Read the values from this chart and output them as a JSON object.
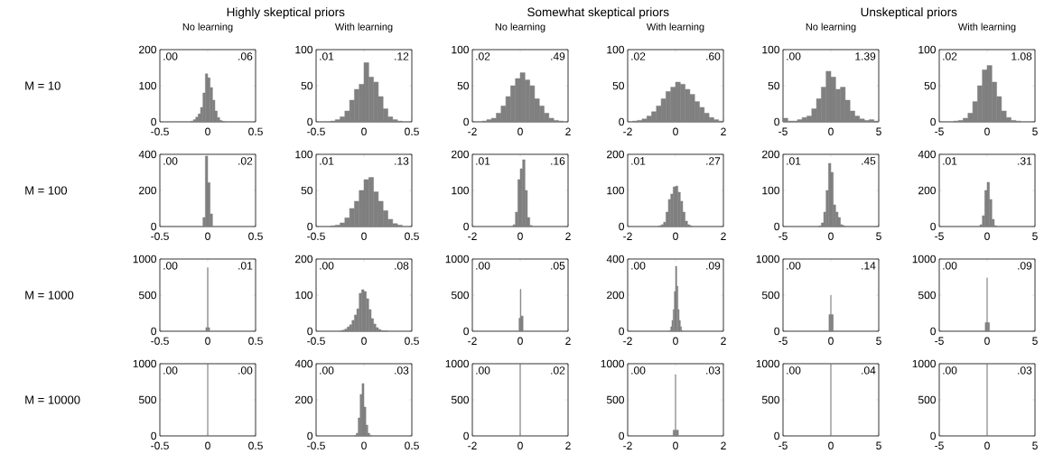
{
  "chart_data": [
    {
      "type": "histogram",
      "title": "Highly skeptical priors",
      "subtitle": "No learning",
      "ylabel": "M = 10",
      "color": "#808080",
      "xlim": [
        -0.5,
        0.5
      ],
      "ylim": [
        0,
        200
      ],
      "xticks": [
        -0.5,
        0,
        0.5
      ],
      "yticks": [
        0,
        100,
        200
      ],
      "annotations": [
        ".00",
        ".06"
      ],
      "bins": [
        -0.175,
        -0.15,
        -0.125,
        -0.1,
        -0.075,
        -0.05,
        -0.025,
        0,
        0.025,
        0.05,
        0.075,
        0.1,
        0.125,
        0.15,
        0.175
      ],
      "values": [
        2,
        6,
        13,
        22,
        40,
        80,
        133,
        122,
        95,
        60,
        30,
        12,
        4,
        1
      ]
    },
    {
      "type": "histogram",
      "subtitle": "With learning",
      "color": "#808080",
      "xlim": [
        -0.5,
        0.5
      ],
      "ylim": [
        0,
        100
      ],
      "xticks": [
        -0.5,
        0,
        0.5
      ],
      "yticks": [
        0,
        50,
        100
      ],
      "annotations": [
        ".01",
        ".12"
      ],
      "bins": [
        -0.35,
        -0.3,
        -0.25,
        -0.2,
        -0.15,
        -0.1,
        -0.05,
        0,
        0.05,
        0.1,
        0.15,
        0.2,
        0.25,
        0.3,
        0.35,
        0.4
      ],
      "values": [
        1,
        3,
        7,
        15,
        30,
        45,
        52,
        82,
        62,
        55,
        35,
        18,
        7,
        3,
        1
      ]
    },
    {
      "type": "histogram",
      "title": "Somewhat skeptical priors",
      "subtitle": "No learning",
      "color": "#808080",
      "xlim": [
        -2,
        2
      ],
      "ylim": [
        0,
        100
      ],
      "xticks": [
        -2,
        0,
        2
      ],
      "yticks": [
        0,
        50,
        100
      ],
      "annotations": [
        ".02",
        ".49"
      ],
      "bins": [
        -1.6,
        -1.4,
        -1.2,
        -1.0,
        -0.8,
        -0.6,
        -0.4,
        -0.2,
        0,
        0.2,
        0.4,
        0.6,
        0.8,
        1.0,
        1.2,
        1.4,
        1.6,
        1.8
      ],
      "values": [
        1,
        3,
        5,
        12,
        22,
        35,
        50,
        60,
        68,
        58,
        50,
        32,
        22,
        12,
        5,
        2,
        1
      ]
    },
    {
      "type": "histogram",
      "subtitle": "With learning",
      "color": "#808080",
      "xlim": [
        -2,
        2
      ],
      "ylim": [
        0,
        100
      ],
      "xticks": [
        -2,
        0,
        2
      ],
      "yticks": [
        0,
        50,
        100
      ],
      "annotations": [
        ".02",
        ".60"
      ],
      "bins": [
        -1.8,
        -1.6,
        -1.4,
        -1.2,
        -1.0,
        -0.8,
        -0.6,
        -0.4,
        -0.2,
        0,
        0.2,
        0.4,
        0.6,
        0.8,
        1.0,
        1.2,
        1.4,
        1.6,
        1.8,
        2.0
      ],
      "values": [
        1,
        2,
        4,
        8,
        14,
        22,
        32,
        42,
        48,
        55,
        52,
        45,
        38,
        28,
        20,
        12,
        6,
        3,
        1
      ]
    },
    {
      "type": "histogram",
      "title": "Unskeptical priors",
      "subtitle": "No learning",
      "color": "#808080",
      "xlim": [
        -5,
        5
      ],
      "ylim": [
        0,
        100
      ],
      "xticks": [
        -5,
        0,
        5
      ],
      "yticks": [
        0,
        50,
        100
      ],
      "annotations": [
        ".00",
        "1.39"
      ],
      "bins": [
        -5,
        -4.5,
        -4,
        -3.5,
        -3,
        -2.5,
        -2,
        -1.5,
        -1,
        -0.5,
        0,
        0.5,
        1,
        1.5,
        2,
        2.5,
        3,
        3.5,
        4,
        4.5,
        5
      ],
      "values": [
        5,
        1,
        1,
        3,
        6,
        8,
        18,
        32,
        48,
        70,
        62,
        45,
        48,
        30,
        15,
        8,
        4,
        2,
        3,
        1
      ]
    },
    {
      "type": "histogram",
      "subtitle": "With learning",
      "color": "#808080",
      "xlim": [
        -5,
        5
      ],
      "ylim": [
        0,
        100
      ],
      "xticks": [
        -5,
        0,
        5
      ],
      "yticks": [
        0,
        50,
        100
      ],
      "annotations": [
        ".02",
        "1.08"
      ],
      "bins": [
        -3.5,
        -3,
        -2.5,
        -2,
        -1.5,
        -1,
        -0.5,
        0,
        0.5,
        1,
        1.5,
        2,
        2.5,
        3,
        3.5
      ],
      "values": [
        1,
        2,
        5,
        12,
        28,
        50,
        72,
        78,
        55,
        35,
        15,
        6,
        2,
        1
      ]
    },
    {
      "type": "histogram",
      "ylabel": "M = 100",
      "color": "#808080",
      "xlim": [
        -0.5,
        0.5
      ],
      "ylim": [
        0,
        400
      ],
      "xticks": [
        -0.5,
        0,
        0.5
      ],
      "yticks": [
        0,
        200,
        400
      ],
      "annotations": [
        ".00",
        ".02"
      ],
      "bins": [
        -0.05,
        -0.025,
        0,
        0.025,
        0.05
      ],
      "values": [
        50,
        390,
        243,
        70
      ]
    },
    {
      "type": "histogram",
      "color": "#808080",
      "xlim": [
        -0.5,
        0.5
      ],
      "ylim": [
        0,
        100
      ],
      "xticks": [
        -0.5,
        0,
        0.5
      ],
      "yticks": [
        0,
        50,
        100
      ],
      "annotations": [
        ".01",
        ".13"
      ],
      "bins": [
        -0.35,
        -0.3,
        -0.25,
        -0.2,
        -0.15,
        -0.1,
        -0.05,
        0,
        0.05,
        0.1,
        0.15,
        0.2,
        0.25,
        0.3,
        0.35,
        0.4
      ],
      "values": [
        1,
        2,
        5,
        12,
        25,
        35,
        50,
        65,
        68,
        48,
        35,
        22,
        10,
        4,
        2
      ]
    },
    {
      "type": "histogram",
      "color": "#808080",
      "xlim": [
        -2,
        2
      ],
      "ylim": [
        0,
        200
      ],
      "xticks": [
        -2,
        0,
        2
      ],
      "yticks": [
        0,
        100,
        200
      ],
      "annotations": [
        ".01",
        ".16"
      ],
      "bins": [
        -0.3,
        -0.2,
        -0.1,
        0,
        0.1,
        0.2,
        0.3,
        0.4,
        0.5
      ],
      "values": [
        5,
        40,
        130,
        160,
        185,
        100,
        25,
        3
      ]
    },
    {
      "type": "histogram",
      "color": "#808080",
      "xlim": [
        -2,
        2
      ],
      "ylim": [
        0,
        200
      ],
      "xticks": [
        -2,
        0,
        2
      ],
      "yticks": [
        0,
        100,
        200
      ],
      "annotations": [
        ".01",
        ".27"
      ],
      "bins": [
        -0.7,
        -0.6,
        -0.5,
        -0.4,
        -0.3,
        -0.2,
        -0.1,
        0,
        0.1,
        0.2,
        0.3,
        0.4,
        0.5,
        0.6,
        0.7
      ],
      "values": [
        2,
        5,
        12,
        40,
        75,
        90,
        110,
        112,
        95,
        70,
        40,
        15,
        5,
        2
      ]
    },
    {
      "type": "histogram",
      "color": "#808080",
      "xlim": [
        -5,
        5
      ],
      "ylim": [
        0,
        200
      ],
      "xticks": [
        -5,
        0,
        5
      ],
      "yticks": [
        0,
        100,
        200
      ],
      "annotations": [
        ".01",
        ".45"
      ],
      "bins": [
        -1.25,
        -1,
        -0.75,
        -0.5,
        -0.25,
        0,
        0.25,
        0.5,
        0.75,
        1,
        1.25,
        1.5
      ],
      "values": [
        2,
        10,
        40,
        100,
        175,
        150,
        60,
        40,
        25,
        5,
        2
      ]
    },
    {
      "type": "histogram",
      "color": "#808080",
      "xlim": [
        -5,
        5
      ],
      "ylim": [
        0,
        400
      ],
      "xticks": [
        -5,
        0,
        5
      ],
      "yticks": [
        0,
        200,
        400
      ],
      "annotations": [
        ".01",
        ".31"
      ],
      "bins": [
        -0.75,
        -0.5,
        -0.25,
        0,
        0.25,
        0.5,
        0.75,
        1.0
      ],
      "values": [
        10,
        60,
        200,
        245,
        150,
        40,
        5
      ]
    },
    {
      "type": "histogram",
      "ylabel": "M = 1000",
      "color": "#808080",
      "xlim": [
        -0.5,
        0.5
      ],
      "ylim": [
        0,
        1000
      ],
      "xticks": [
        -0.5,
        0,
        0.5
      ],
      "yticks": [
        0,
        500,
        1000
      ],
      "annotations": [
        ".00",
        ".01"
      ],
      "bins": [
        -0.02,
        -0.003,
        0.003,
        0.02
      ],
      "values": [
        50,
        880,
        50
      ]
    },
    {
      "type": "histogram",
      "color": "#808080",
      "xlim": [
        -0.5,
        0.5
      ],
      "ylim": [
        0,
        200
      ],
      "xticks": [
        -0.5,
        0,
        0.5
      ],
      "yticks": [
        0,
        100,
        200
      ],
      "annotations": [
        ".00",
        ".08"
      ],
      "bins": [
        -0.25,
        -0.225,
        -0.2,
        -0.175,
        -0.15,
        -0.125,
        -0.1,
        -0.075,
        -0.05,
        -0.025,
        0,
        0.025,
        0.05,
        0.075,
        0.1,
        0.125,
        0.15,
        0.175,
        0.2,
        0.225,
        0.25
      ],
      "values": [
        1,
        3,
        6,
        12,
        18,
        30,
        45,
        62,
        105,
        115,
        110,
        90,
        60,
        35,
        20,
        10,
        5,
        2,
        1,
        1
      ]
    },
    {
      "type": "histogram",
      "color": "#808080",
      "xlim": [
        -2,
        2
      ],
      "ylim": [
        0,
        1000
      ],
      "xticks": [
        -2,
        0,
        2
      ],
      "yticks": [
        0,
        500,
        1000
      ],
      "annotations": [
        ".00",
        ".05"
      ],
      "bins": [
        -0.05,
        0,
        0.03,
        0.12
      ],
      "values": [
        180,
        580,
        210
      ]
    },
    {
      "type": "histogram",
      "color": "#808080",
      "xlim": [
        -2,
        2
      ],
      "ylim": [
        0,
        400
      ],
      "xticks": [
        -2,
        0,
        2
      ],
      "yticks": [
        0,
        200,
        400
      ],
      "annotations": [
        ".00",
        ".09"
      ],
      "bins": [
        -0.25,
        -0.2,
        -0.15,
        -0.1,
        -0.05,
        0,
        0.05,
        0.1,
        0.15,
        0.2,
        0.25,
        0.3
      ],
      "values": [
        3,
        25,
        60,
        120,
        220,
        360,
        250,
        120,
        60,
        25,
        3
      ]
    },
    {
      "type": "histogram",
      "color": "#808080",
      "xlim": [
        -5,
        5
      ],
      "ylim": [
        0,
        1000
      ],
      "xticks": [
        -5,
        0,
        5
      ],
      "yticks": [
        0,
        500,
        1000
      ],
      "annotations": [
        ".00",
        ".14"
      ],
      "bins": [
        -0.2,
        -0.02,
        0.02,
        0.25
      ],
      "values": [
        230,
        500,
        230
      ]
    },
    {
      "type": "histogram",
      "color": "#808080",
      "xlim": [
        -5,
        5
      ],
      "ylim": [
        0,
        1000
      ],
      "xticks": [
        -5,
        0,
        5
      ],
      "yticks": [
        0,
        500,
        1000
      ],
      "annotations": [
        ".00",
        ".09"
      ],
      "bins": [
        -0.2,
        -0.02,
        0.02,
        0.25
      ],
      "values": [
        120,
        740,
        120
      ]
    },
    {
      "type": "histogram",
      "ylabel": "M = 10000",
      "color": "#808080",
      "xlim": [
        -0.5,
        0.5
      ],
      "ylim": [
        0,
        1000
      ],
      "xticks": [
        -0.5,
        0,
        0.5
      ],
      "yticks": [
        0,
        500,
        1000
      ],
      "annotations": [
        ".00",
        ".00"
      ],
      "bins": [
        -0.002,
        0.002
      ],
      "values": [
        1000
      ]
    },
    {
      "type": "histogram",
      "color": "#808080",
      "xlim": [
        -0.5,
        0.5
      ],
      "ylim": [
        0,
        400
      ],
      "xticks": [
        -0.5,
        0,
        0.5
      ],
      "yticks": [
        0,
        200,
        400
      ],
      "annotations": [
        ".00",
        ".03"
      ],
      "bins": [
        -0.1,
        -0.08,
        -0.06,
        -0.04,
        -0.02,
        0,
        0.02,
        0.04,
        0.06,
        0.08
      ],
      "values": [
        3,
        15,
        100,
        230,
        290,
        160,
        60,
        15,
        3
      ]
    },
    {
      "type": "histogram",
      "color": "#808080",
      "xlim": [
        -2,
        2
      ],
      "ylim": [
        0,
        1000
      ],
      "xticks": [
        -2,
        0,
        2
      ],
      "yticks": [
        0,
        500,
        1000
      ],
      "annotations": [
        ".00",
        ".02"
      ],
      "bins": [
        -0.01,
        0.01
      ],
      "values": [
        1000
      ]
    },
    {
      "type": "histogram",
      "color": "#808080",
      "xlim": [
        -2,
        2
      ],
      "ylim": [
        0,
        1000
      ],
      "xticks": [
        -2,
        0,
        2
      ],
      "yticks": [
        0,
        500,
        1000
      ],
      "annotations": [
        ".00",
        ".03"
      ],
      "bins": [
        -0.1,
        -0.01,
        0.01,
        0.12
      ],
      "values": [
        80,
        850,
        80
      ]
    },
    {
      "type": "histogram",
      "color": "#808080",
      "xlim": [
        -5,
        5
      ],
      "ylim": [
        0,
        1000
      ],
      "xticks": [
        -5,
        0,
        5
      ],
      "yticks": [
        0,
        500,
        1000
      ],
      "annotations": [
        ".00",
        ".04"
      ],
      "bins": [
        -0.02,
        0.02
      ],
      "values": [
        990
      ]
    },
    {
      "type": "histogram",
      "color": "#808080",
      "xlim": [
        -5,
        5
      ],
      "ylim": [
        0,
        1000
      ],
      "xticks": [
        -5,
        0,
        5
      ],
      "yticks": [
        0,
        500,
        1000
      ],
      "annotations": [
        ".00",
        ".03"
      ],
      "bins": [
        -0.02,
        0.02
      ],
      "values": [
        1000
      ]
    }
  ]
}
